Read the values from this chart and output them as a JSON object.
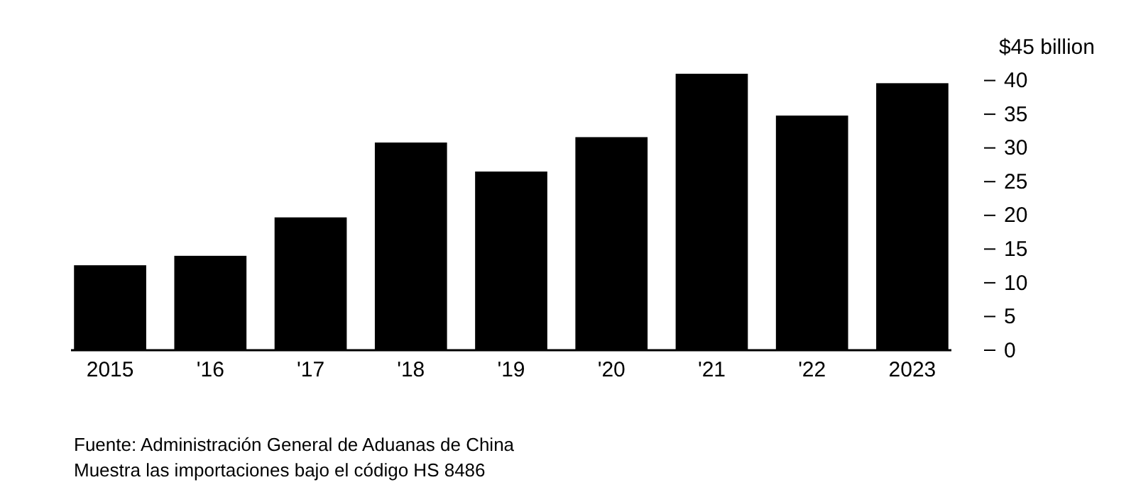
{
  "chart_data": {
    "type": "bar",
    "categories": [
      "2015",
      "'16",
      "'17",
      "'18",
      "'19",
      "'20",
      "'21",
      "'22",
      "2023"
    ],
    "values": [
      12.6,
      14.0,
      19.7,
      30.8,
      26.5,
      31.6,
      41.0,
      34.8,
      39.6
    ],
    "color": "#000000",
    "ylim": [
      0,
      45
    ],
    "yticks": [
      0,
      5,
      10,
      15,
      20,
      25,
      30,
      35,
      40,
      {
        "value": 45,
        "label": "$45 billion"
      }
    ],
    "grid": false,
    "annotations": [
      "Fuente: Administración General de Aduanas de China",
      "Muestra las importaciones bajo el código HS 8486"
    ]
  }
}
